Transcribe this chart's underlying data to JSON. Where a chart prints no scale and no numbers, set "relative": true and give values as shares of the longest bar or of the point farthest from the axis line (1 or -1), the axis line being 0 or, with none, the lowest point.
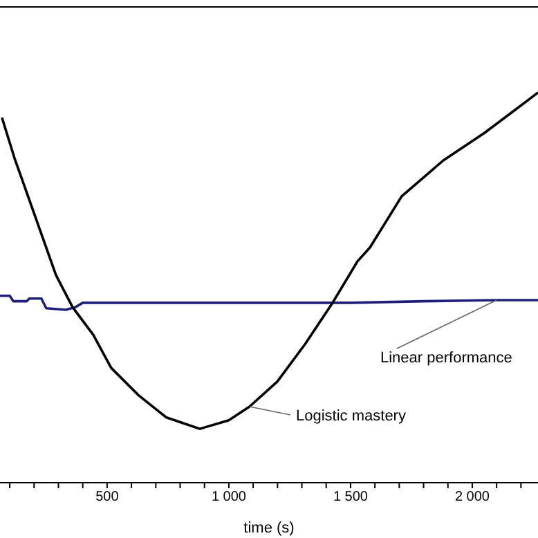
{
  "chart_data": {
    "type": "line",
    "relative": true,
    "xlabel": "time (s)",
    "xlim": [
      60,
      2270
    ],
    "xticks": [
      {
        "value": 100,
        "label": null
      },
      {
        "value": 200,
        "label": null
      },
      {
        "value": 300,
        "label": null
      },
      {
        "value": 400,
        "label": null
      },
      500,
      {
        "value": 600,
        "label": null
      },
      {
        "value": 700,
        "label": null
      },
      {
        "value": 800,
        "label": null
      },
      {
        "value": 900,
        "label": null
      },
      {
        "value": 1000,
        "label": "1 000"
      },
      {
        "value": 1100,
        "label": null
      },
      {
        "value": 1200,
        "label": null
      },
      {
        "value": 1300,
        "label": null
      },
      {
        "value": 1400,
        "label": null
      },
      {
        "value": 1500,
        "label": "1 500"
      },
      {
        "value": 1600,
        "label": null
      },
      {
        "value": 1700,
        "label": null
      },
      {
        "value": 1800,
        "label": null
      },
      {
        "value": 1900,
        "label": null
      },
      {
        "value": 2000,
        "label": "2 000"
      },
      {
        "value": 2100,
        "label": null
      },
      {
        "value": 2200,
        "label": null
      }
    ],
    "marker": "none",
    "line_style": "solid",
    "series": [
      {
        "name": "Linear performance",
        "color": "#1f1f7a",
        "x": [
          60,
          100,
          115,
          170,
          180,
          230,
          250,
          330,
          370,
          400,
          1000,
          1500,
          1800,
          2100,
          2270
        ],
        "values": [
          0.479,
          0.479,
          0.465,
          0.465,
          0.472,
          0.472,
          0.447,
          0.443,
          0.45,
          0.461,
          0.461,
          0.461,
          0.465,
          0.468,
          0.468
        ]
      },
      {
        "name": "Logistic mastery",
        "color": "#000000",
        "x": [
          68,
          119,
          290,
          358,
          443,
          517,
          631,
          744,
          881,
          1000,
          1085,
          1199,
          1313,
          1426,
          1528,
          1580,
          1710,
          1881,
          2051,
          2270
        ],
        "values": [
          0.936,
          0.833,
          0.532,
          0.45,
          0.379,
          0.294,
          0.223,
          0.167,
          0.138,
          0.16,
          0.195,
          0.259,
          0.355,
          0.461,
          0.567,
          0.603,
          0.734,
          0.826,
          0.897,
          1.0
        ]
      }
    ]
  }
}
